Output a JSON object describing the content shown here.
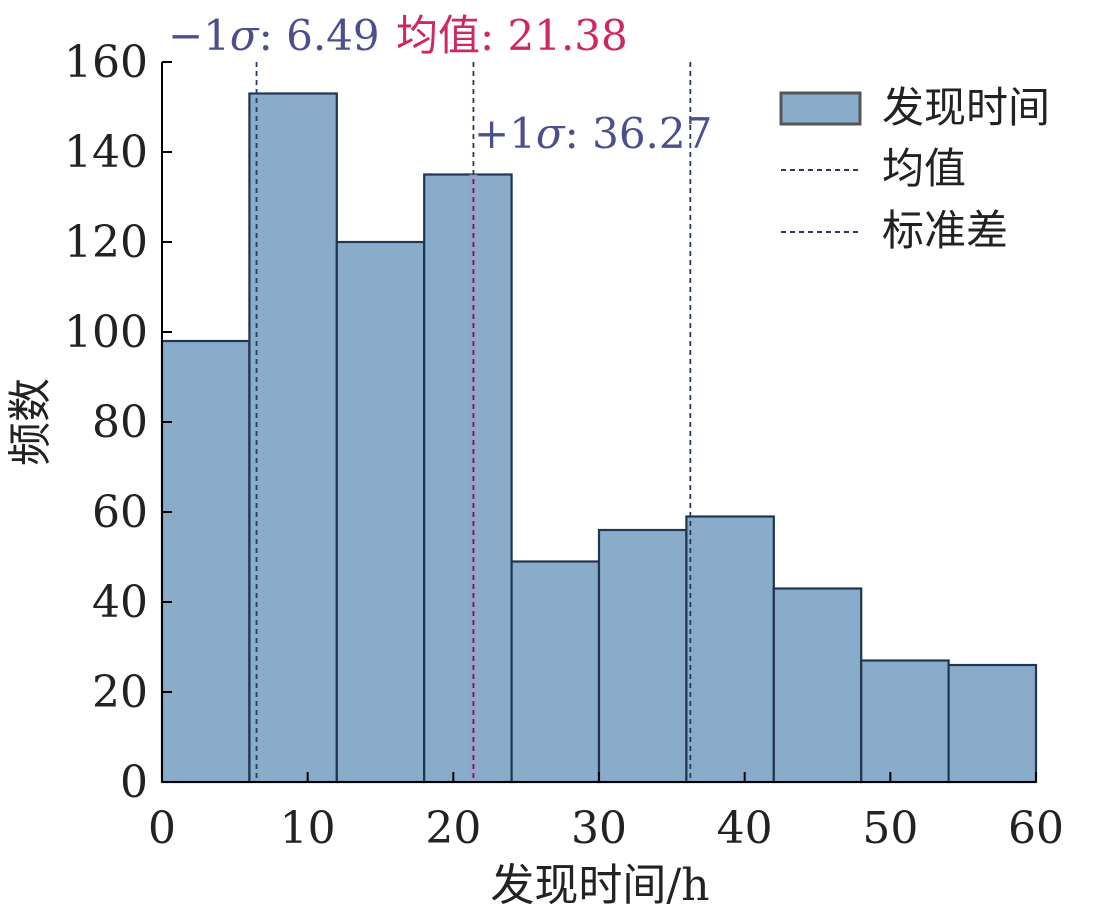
{
  "chart_data": {
    "type": "bar",
    "xlabel": "发现时间/h",
    "ylabel": "频数",
    "xlim": [
      0,
      60
    ],
    "ylim": [
      0,
      160
    ],
    "xticks": [
      "0",
      "10",
      "20",
      "30",
      "40",
      "50",
      "60"
    ],
    "yticks": [
      "0",
      "20",
      "40",
      "60",
      "80",
      "100",
      "120",
      "140",
      "160"
    ],
    "grid": false,
    "legend_position": "top-right",
    "bins": [
      {
        "x0": 0,
        "x1": 6,
        "value": 98
      },
      {
        "x0": 6,
        "x1": 12,
        "value": 153
      },
      {
        "x0": 12,
        "x1": 18,
        "value": 120
      },
      {
        "x0": 18,
        "x1": 24,
        "value": 135
      },
      {
        "x0": 24,
        "x1": 30,
        "value": 49
      },
      {
        "x0": 30,
        "x1": 36,
        "value": 56
      },
      {
        "x0": 36,
        "x1": 42,
        "value": 59
      },
      {
        "x0": 42,
        "x1": 48,
        "value": 43
      },
      {
        "x0": 48,
        "x1": 54,
        "value": 27
      },
      {
        "x0": 54,
        "x1": 60,
        "value": 26
      }
    ],
    "reference_lines": {
      "mean": 21.38,
      "minus_sigma": 6.49,
      "plus_sigma": 36.27
    },
    "annotations": {
      "minus_sigma_prefix": "−1",
      "plus_sigma_prefix": "+1",
      "sigma_symbol": "σ",
      "minus_sigma_value": ": 6.49",
      "plus_sigma_value": ": 36.27",
      "mean_label": "均值: 21.38"
    },
    "legend": {
      "hist": "发现时间",
      "mean": "均值",
      "std": "标准差"
    },
    "colors": {
      "bar_fill": "#8aaccb",
      "bar_edge": "#1f3550",
      "mean_band": "#9f9ccc",
      "annotation_sigma": "#4a4f8f",
      "annotation_mean": "#cf2860",
      "dashed_line": "#2a3a5a"
    }
  }
}
